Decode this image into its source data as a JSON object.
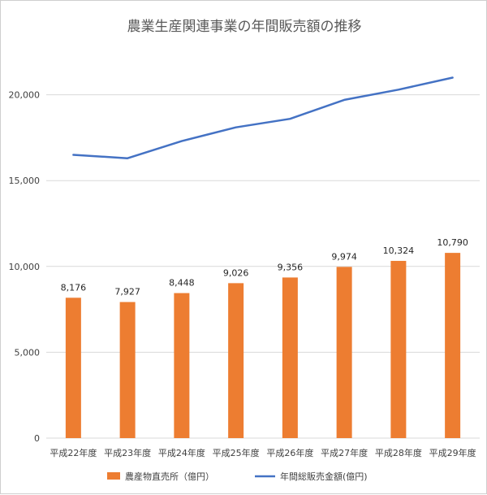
{
  "chart_data": {
    "type": "bar",
    "title": "農業生産関連事業の年間販売額の推移",
    "categories": [
      "平成22年度",
      "平成23年度",
      "平成24年度",
      "平成25年度",
      "平成26年度",
      "平成27年度",
      "平成28年度",
      "平成29年度"
    ],
    "series": [
      {
        "name": "農産物直売所（億円）",
        "type": "bar",
        "values": [
          8176,
          7927,
          8448,
          9026,
          9356,
          9974,
          10324,
          10790
        ],
        "data_labels": [
          "8,176",
          "7,927",
          "8,448",
          "9,026",
          "9,356",
          "9,974",
          "10,324",
          "10,790"
        ],
        "color": "#ED7D31"
      },
      {
        "name": "年間総販売金額(億円)",
        "type": "line",
        "values": [
          16500,
          16300,
          17300,
          18100,
          18600,
          19700,
          20300,
          21000
        ],
        "color": "#4472C4"
      }
    ],
    "ylim": [
      0,
      25000
    ],
    "yticks": [
      "0",
      "5,000",
      "10,000",
      "15,000",
      "20,000"
    ],
    "grid": true,
    "legend_position": "bottom"
  }
}
